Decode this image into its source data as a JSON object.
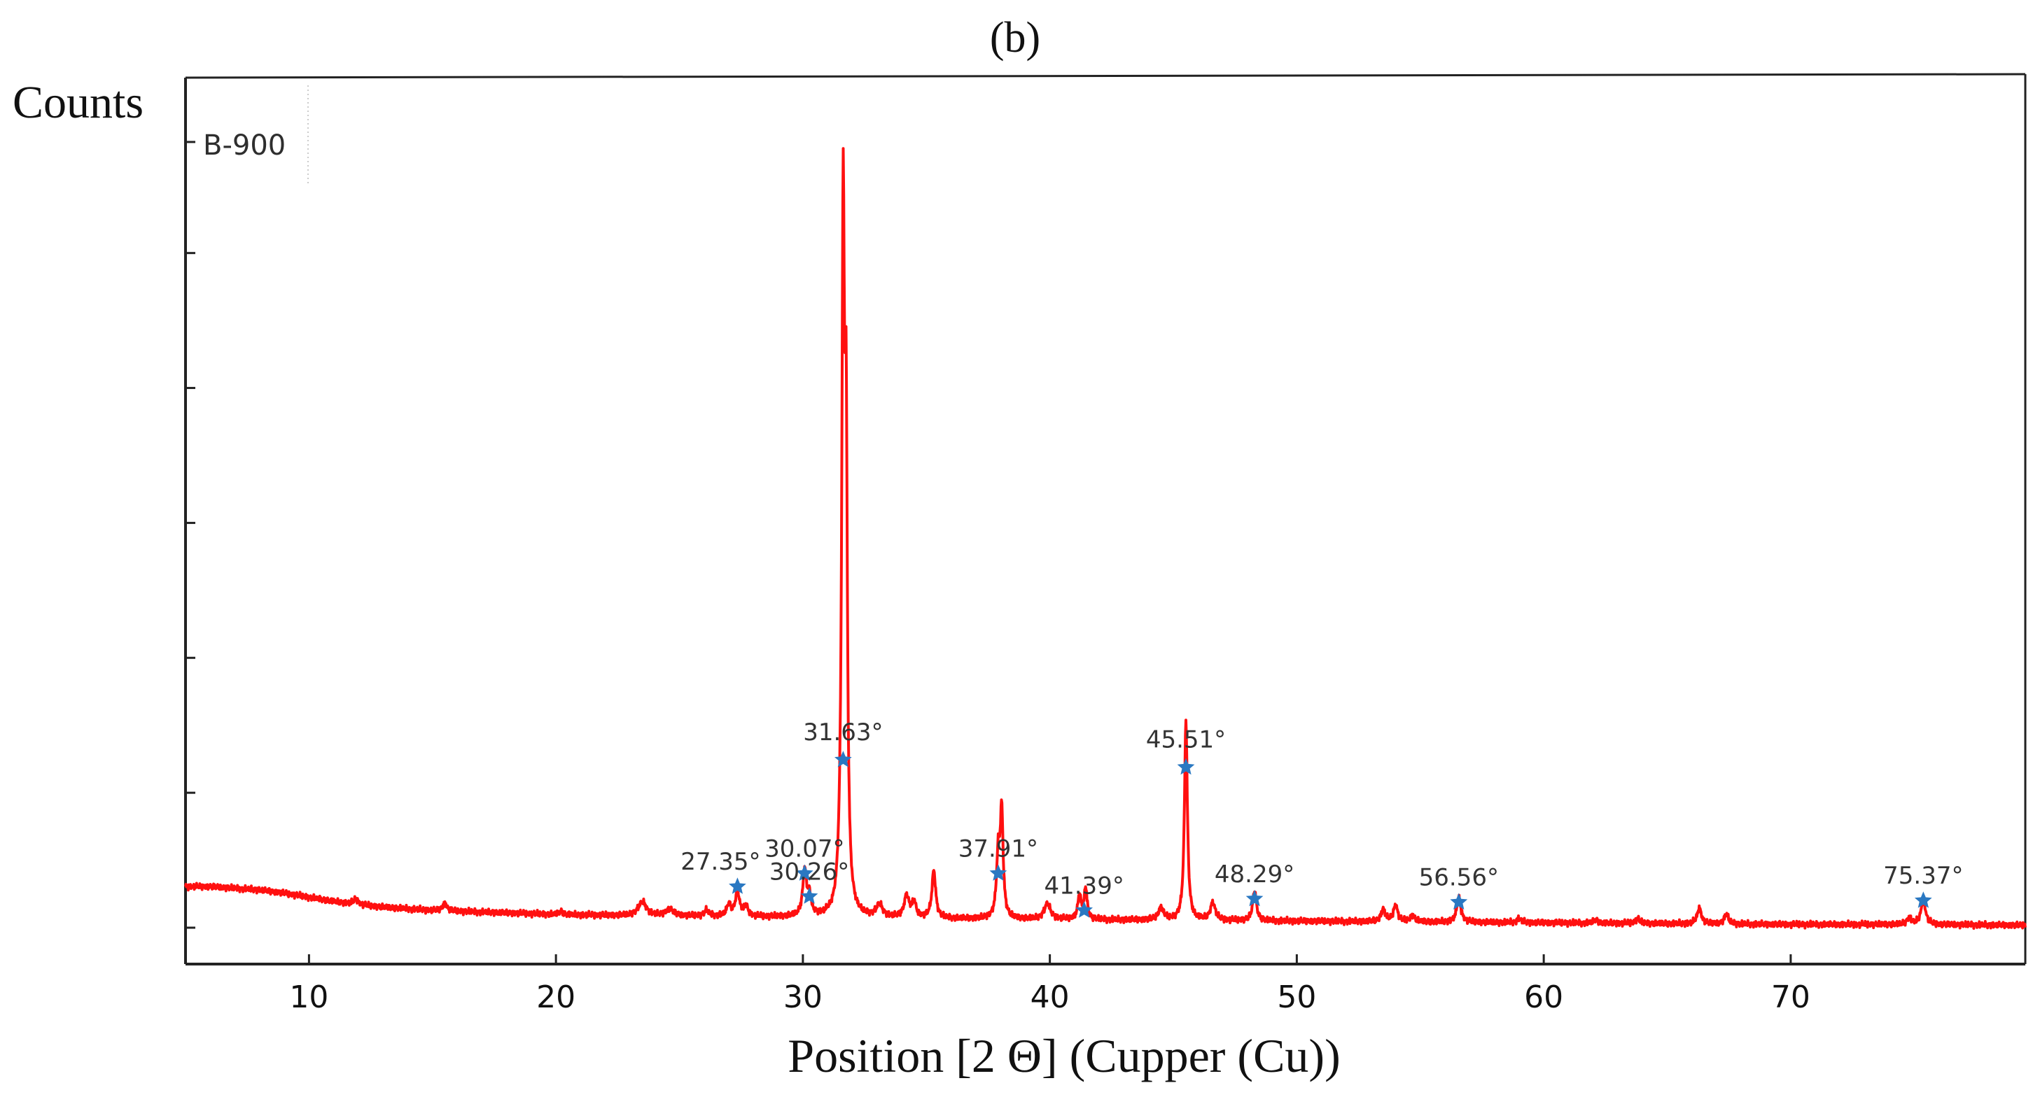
{
  "chart_data": {
    "type": "line",
    "panel_label": "(b)",
    "ylabel": "Counts",
    "xlabel": "Position [2 Θ] (Cupper (Cu))",
    "legend": "B-900",
    "xlim": [
      5,
      79.5
    ],
    "ylim": [
      0,
      100
    ],
    "x_ticks": [
      10,
      20,
      30,
      40,
      50,
      60,
      70
    ],
    "y_tick_positions": [
      0,
      16.4,
      32.8,
      49.2,
      65.6,
      82.0,
      95.5
    ],
    "line_color": "#ff1010",
    "marker_color": "#2a78c2",
    "annotation_color": "#333333",
    "baseline": [
      [
        5,
        5.0
      ],
      [
        6,
        5.0
      ],
      [
        7,
        4.8
      ],
      [
        8,
        4.6
      ],
      [
        9,
        4.2
      ],
      [
        10,
        3.7
      ],
      [
        11,
        3.2
      ],
      [
        12,
        2.8
      ],
      [
        13,
        2.5
      ],
      [
        14,
        2.3
      ],
      [
        15,
        2.1
      ],
      [
        16,
        2.0
      ],
      [
        18,
        1.8
      ],
      [
        20,
        1.6
      ],
      [
        22,
        1.5
      ],
      [
        24,
        1.4
      ],
      [
        26,
        1.4
      ],
      [
        28,
        1.3
      ],
      [
        30,
        1.3
      ],
      [
        32,
        1.2
      ],
      [
        35,
        1.1
      ],
      [
        40,
        1.0
      ],
      [
        45,
        0.9
      ],
      [
        50,
        0.8
      ],
      [
        55,
        0.7
      ],
      [
        60,
        0.6
      ],
      [
        65,
        0.5
      ],
      [
        70,
        0.4
      ],
      [
        75,
        0.4
      ],
      [
        79.5,
        0.3
      ]
    ],
    "peaks": [
      {
        "x": 11.9,
        "h": 0.7,
        "w": 0.1
      },
      {
        "x": 15.5,
        "h": 0.9,
        "w": 0.1
      },
      {
        "x": 20.2,
        "h": 0.4,
        "w": 0.1
      },
      {
        "x": 23.5,
        "h": 1.7,
        "w": 0.2
      },
      {
        "x": 24.6,
        "h": 0.8,
        "w": 0.2
      },
      {
        "x": 26.1,
        "h": 0.7,
        "w": 0.1
      },
      {
        "x": 27.0,
        "h": 1.4,
        "w": 0.1
      },
      {
        "x": 27.35,
        "h": 3.0,
        "w": 0.1
      },
      {
        "x": 27.7,
        "h": 1.2,
        "w": 0.1
      },
      {
        "x": 30.07,
        "h": 5.4,
        "w": 0.09
      },
      {
        "x": 30.26,
        "h": 2.3,
        "w": 0.09
      },
      {
        "x": 31.5,
        "h": 1.5,
        "w": 0.08
      },
      {
        "x": 31.63,
        "h": 82.0,
        "w": 0.065
      },
      {
        "x": 31.75,
        "h": 52.0,
        "w": 0.06
      },
      {
        "x": 33.1,
        "h": 1.5,
        "w": 0.15
      },
      {
        "x": 34.2,
        "h": 2.6,
        "w": 0.12
      },
      {
        "x": 34.5,
        "h": 1.8,
        "w": 0.1
      },
      {
        "x": 35.3,
        "h": 5.8,
        "w": 0.09
      },
      {
        "x": 37.91,
        "h": 7.4,
        "w": 0.08
      },
      {
        "x": 38.05,
        "h": 12.6,
        "w": 0.07
      },
      {
        "x": 39.9,
        "h": 1.9,
        "w": 0.15
      },
      {
        "x": 41.2,
        "h": 2.9,
        "w": 0.08
      },
      {
        "x": 41.45,
        "h": 3.8,
        "w": 0.07
      },
      {
        "x": 44.5,
        "h": 1.5,
        "w": 0.12
      },
      {
        "x": 45.51,
        "h": 24.4,
        "w": 0.07
      },
      {
        "x": 46.6,
        "h": 2.1,
        "w": 0.12
      },
      {
        "x": 48.29,
        "h": 3.6,
        "w": 0.09
      },
      {
        "x": 53.5,
        "h": 1.5,
        "w": 0.1
      },
      {
        "x": 54.0,
        "h": 2.0,
        "w": 0.1
      },
      {
        "x": 54.7,
        "h": 0.8,
        "w": 0.1
      },
      {
        "x": 56.56,
        "h": 3.0,
        "w": 0.1
      },
      {
        "x": 59.0,
        "h": 0.5,
        "w": 0.1
      },
      {
        "x": 62.1,
        "h": 0.4,
        "w": 0.1
      },
      {
        "x": 63.8,
        "h": 0.6,
        "w": 0.1
      },
      {
        "x": 66.3,
        "h": 1.9,
        "w": 0.1
      },
      {
        "x": 67.4,
        "h": 1.2,
        "w": 0.1
      },
      {
        "x": 74.8,
        "h": 0.8,
        "w": 0.1
      },
      {
        "x": 75.37,
        "h": 3.2,
        "w": 0.1
      }
    ],
    "annotations": [
      {
        "label": "31.63°",
        "x": 31.63,
        "y": 20.4,
        "dx": 0,
        "dy": -28
      },
      {
        "label": "45.51°",
        "x": 45.51,
        "y": 19.5,
        "dx": 0,
        "dy": -28
      },
      {
        "label": "27.35°",
        "x": 27.35,
        "y": 5.0,
        "dx": -24,
        "dy": -24
      },
      {
        "label": "30.07°",
        "x": 30.07,
        "y": 6.6,
        "dx": 0,
        "dy": -24
      },
      {
        "label": "30.26°",
        "x": 30.26,
        "y": 3.8,
        "dx": 0,
        "dy": -24
      },
      {
        "label": "37.91°",
        "x": 37.91,
        "y": 6.6,
        "dx": 0,
        "dy": -24
      },
      {
        "label": "41.39°",
        "x": 41.39,
        "y": 2.1,
        "dx": 0,
        "dy": -24
      },
      {
        "label": "48.29°",
        "x": 48.29,
        "y": 3.5,
        "dx": 0,
        "dy": -24
      },
      {
        "label": "56.56°",
        "x": 56.56,
        "y": 3.1,
        "dx": 0,
        "dy": -24
      },
      {
        "label": "75.37°",
        "x": 75.37,
        "y": 3.3,
        "dx": 0,
        "dy": -24
      }
    ]
  }
}
